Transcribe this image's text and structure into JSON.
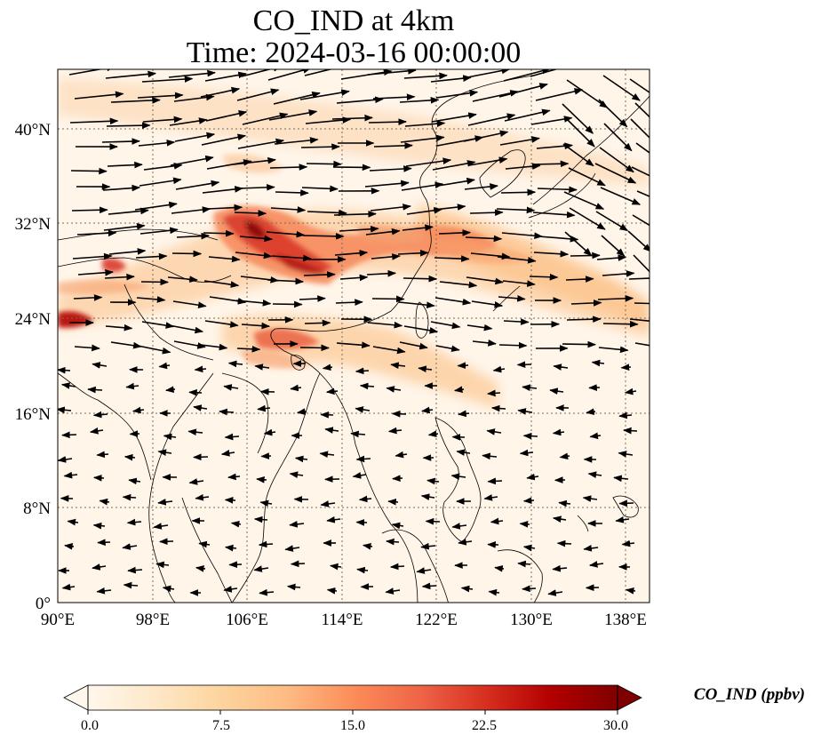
{
  "title_line1": "CO_IND at 4km",
  "title_line2": "Time: 2024-03-16 00:00:00",
  "map": {
    "lon_range": [
      90,
      140
    ],
    "lat_range": [
      0,
      45
    ],
    "lon_ticks": [
      "90°E",
      "98°E",
      "106°E",
      "114°E",
      "122°E",
      "130°E",
      "138°E"
    ],
    "lon_tick_values": [
      90,
      98,
      106,
      114,
      122,
      130,
      138
    ],
    "lat_ticks": [
      "0°",
      "8°N",
      "16°N",
      "24°N",
      "32°N",
      "40°N"
    ],
    "lat_tick_values": [
      0,
      8,
      16,
      24,
      32,
      40
    ],
    "gridlines": true,
    "colors": {
      "coast": "#000000",
      "grid": "#7a6a55",
      "vector": "#000000"
    }
  },
  "colorbar": {
    "label": "CO_IND (ppbv)",
    "ticks": [
      "0.0",
      "7.5",
      "15.0",
      "22.5",
      "30.0"
    ],
    "tick_values": [
      0,
      7.5,
      15,
      22.5,
      30
    ],
    "range": [
      0,
      30
    ],
    "extend": "both",
    "cmap": "OrRd",
    "colors": [
      "#fff7ec",
      "#fee8c8",
      "#fdd49e",
      "#fdbb84",
      "#fc8d59",
      "#ef6548",
      "#d7301f",
      "#b30000",
      "#7f0000"
    ]
  }
}
